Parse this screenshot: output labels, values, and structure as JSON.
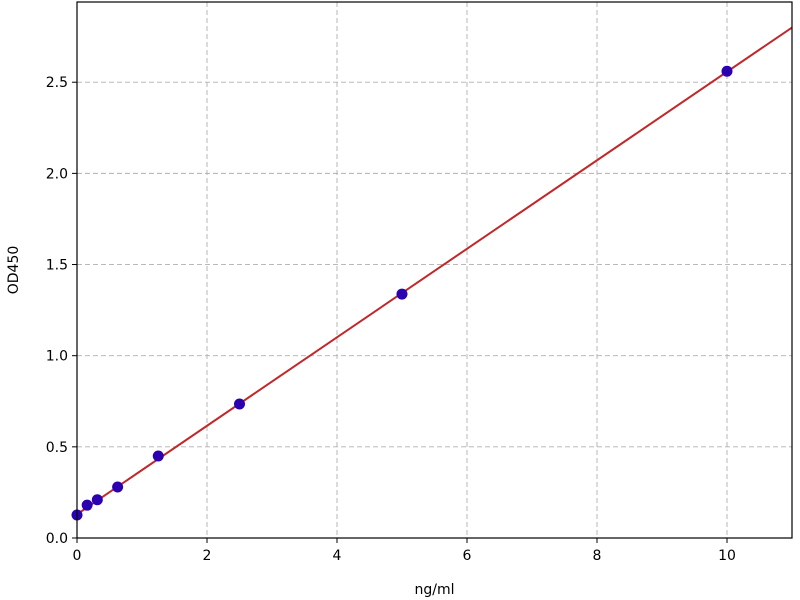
{
  "chart_data": {
    "type": "scatter",
    "title": "",
    "xlabel": "ng/ml",
    "ylabel": "OD450",
    "xlim": [
      0,
      11
    ],
    "ylim": [
      0,
      2.94
    ],
    "xticks": [
      0,
      2,
      4,
      6,
      8,
      10
    ],
    "xtick_labels": [
      "0",
      "2",
      "4",
      "6",
      "8",
      "10"
    ],
    "yticks": [
      0,
      0.5,
      1.0,
      1.5,
      2.0,
      2.5
    ],
    "ytick_labels": [
      "0.0",
      "0.5",
      "1.0",
      "1.5",
      "2.0",
      "2.5"
    ],
    "grid": true,
    "points": {
      "x": [
        0,
        0.156,
        0.3125,
        0.625,
        1.25,
        2.5,
        5,
        10
      ],
      "y": [
        0.126,
        0.18,
        0.21,
        0.28,
        0.45,
        0.735,
        1.338,
        2.56
      ],
      "color": "#2a00b0"
    },
    "fit_line": {
      "x": [
        0,
        11
      ],
      "y": [
        0.13,
        2.8
      ],
      "color": "#c0282a"
    }
  }
}
